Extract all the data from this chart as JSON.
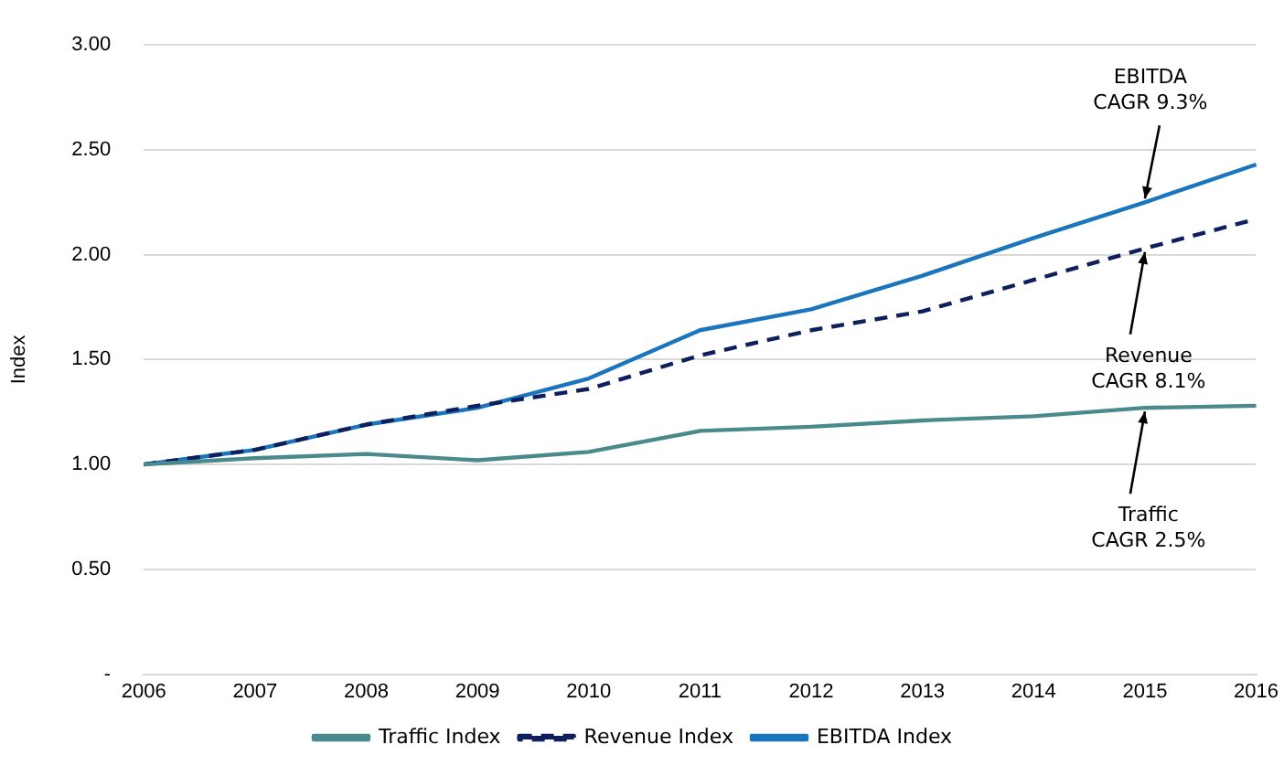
{
  "chart_data": {
    "type": "line",
    "ylabel": "Index",
    "categories": [
      "2006",
      "2007",
      "2008",
      "2009",
      "2010",
      "2011",
      "2012",
      "2013",
      "2014",
      "2015",
      "2016"
    ],
    "series": [
      {
        "name": "Traffic Index",
        "color": "#4a8a8c",
        "line_style": "solid",
        "values": [
          1.0,
          1.03,
          1.05,
          1.02,
          1.06,
          1.16,
          1.18,
          1.21,
          1.23,
          1.27,
          1.28
        ]
      },
      {
        "name": "Revenue Index",
        "color": "#0d1f5c",
        "line_style": "dashed",
        "values": [
          1.0,
          1.07,
          1.19,
          1.28,
          1.36,
          1.52,
          1.64,
          1.73,
          1.88,
          2.03,
          2.17
        ]
      },
      {
        "name": "EBITDA Index",
        "color": "#1a75bc",
        "line_style": "solid",
        "values": [
          1.0,
          1.07,
          1.19,
          1.27,
          1.41,
          1.64,
          1.74,
          1.9,
          2.08,
          2.25,
          2.43
        ]
      }
    ],
    "ylim": [
      0,
      3
    ],
    "yticks": [
      {
        "value": 0,
        "label": "-"
      },
      {
        "value": 0.5,
        "label": "0.50"
      },
      {
        "value": 1,
        "label": "1.00"
      },
      {
        "value": 1.5,
        "label": "1.50"
      },
      {
        "value": 2,
        "label": "2.00"
      },
      {
        "value": 2.5,
        "label": "2.50"
      },
      {
        "value": 3,
        "label": "3.00"
      }
    ],
    "grid": "y",
    "legend": "bottom",
    "marker": "none",
    "annotations": [
      {
        "text": "EBITDA\nCAGR 9.3%",
        "x": "2015",
        "y": 2.25
      },
      {
        "text": "Revenue\nCAGR 8.1%",
        "x": "2015",
        "y": 2.03
      },
      {
        "text": "Traffic\nCAGR 2.5%",
        "x": "2015",
        "y": 1.27
      }
    ]
  }
}
